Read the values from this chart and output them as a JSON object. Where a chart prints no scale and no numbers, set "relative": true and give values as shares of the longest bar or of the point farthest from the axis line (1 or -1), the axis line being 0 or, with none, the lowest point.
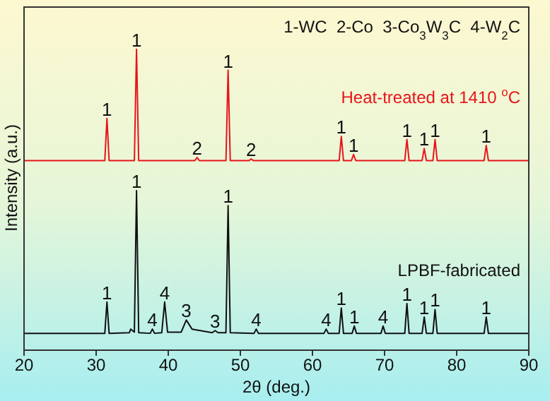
{
  "chart_data": {
    "type": "line",
    "relative": true,
    "xlabel": "2θ (deg.)",
    "ylabel": "Intensity (a.u.)",
    "xlim": [
      20,
      90
    ],
    "xticks": [
      20,
      30,
      40,
      50,
      60,
      70,
      80,
      90
    ],
    "tick_labels": "x",
    "legend": false,
    "grid": false,
    "marker": "none",
    "series": [
      {
        "name": "Heat-treated at 1410 $^{o}$C",
        "color": "#e8141c",
        "x": [
          20,
          31.2,
          31.5,
          31.8,
          35.3,
          35.6,
          35.9,
          43.7,
          44.0,
          44.3,
          48.0,
          48.3,
          48.6,
          51.2,
          51.5,
          51.8,
          63.7,
          64.0,
          64.3,
          65.4,
          65.7,
          66.0,
          72.8,
          73.1,
          73.4,
          75.2,
          75.5,
          75.8,
          76.7,
          77.0,
          77.3,
          83.8,
          84.1,
          84.4,
          90
        ],
        "values": [
          0.63,
          0.63,
          0.77,
          0.63,
          0.63,
          1.0,
          0.63,
          0.63,
          0.64,
          0.63,
          0.63,
          0.93,
          0.63,
          0.63,
          0.635,
          0.63,
          0.63,
          0.71,
          0.63,
          0.63,
          0.65,
          0.63,
          0.63,
          0.7,
          0.63,
          0.63,
          0.67,
          0.63,
          0.63,
          0.7,
          0.63,
          0.63,
          0.68,
          0.63,
          0.63
        ]
      },
      {
        "name": "LPBF-fabricated",
        "color": "#111111",
        "x": [
          20,
          31.2,
          31.5,
          31.8,
          34.6,
          34.8,
          35.3,
          35.6,
          35.9,
          37.5,
          37.8,
          38.1,
          39.1,
          39.5,
          39.9,
          41.8,
          42.5,
          43.3,
          46.1,
          46.5,
          46.9,
          48.0,
          48.3,
          48.6,
          51.9,
          52.2,
          52.5,
          61.6,
          61.9,
          62.2,
          63.7,
          64.0,
          64.3,
          65.5,
          65.8,
          66.1,
          69.5,
          69.8,
          70.1,
          72.8,
          73.1,
          73.4,
          75.2,
          75.5,
          75.8,
          76.7,
          77.0,
          77.3,
          83.8,
          84.1,
          84.4,
          90
        ],
        "values": [
          0.056,
          0.056,
          0.16,
          0.056,
          0.058,
          0.07,
          0.06,
          0.53,
          0.058,
          0.056,
          0.07,
          0.056,
          0.058,
          0.16,
          0.06,
          0.06,
          0.1,
          0.07,
          0.058,
          0.065,
          0.058,
          0.058,
          0.48,
          0.058,
          0.056,
          0.07,
          0.056,
          0.056,
          0.07,
          0.056,
          0.056,
          0.14,
          0.056,
          0.056,
          0.08,
          0.056,
          0.056,
          0.08,
          0.056,
          0.056,
          0.155,
          0.056,
          0.056,
          0.11,
          0.056,
          0.056,
          0.135,
          0.056,
          0.056,
          0.11,
          0.056,
          0.056
        ]
      }
    ],
    "annotations": [
      "1-WC  2-Co  3-Co$_{3}$W$_{3}$C  4-W$_{2}$C",
      {
        "text": "1",
        "x": 31.5,
        "y": 0.77
      },
      {
        "text": "1",
        "x": 35.6,
        "y": 1.0
      },
      {
        "text": "2",
        "x": 44.0,
        "y": 0.64
      },
      {
        "text": "1",
        "x": 48.3,
        "y": 0.93
      },
      {
        "text": "2",
        "x": 51.5,
        "y": 0.635
      },
      {
        "text": "1",
        "x": 64.0,
        "y": 0.71
      },
      {
        "text": "1",
        "x": 65.7,
        "y": 0.65
      },
      {
        "text": "1",
        "x": 73.1,
        "y": 0.7
      },
      {
        "text": "1",
        "x": 75.5,
        "y": 0.67
      },
      {
        "text": "1",
        "x": 77.0,
        "y": 0.7
      },
      {
        "text": "1",
        "x": 84.1,
        "y": 0.68
      },
      {
        "text": "1",
        "x": 31.5,
        "y": 0.16
      },
      {
        "text": "1",
        "x": 35.6,
        "y": 0.53
      },
      {
        "text": "4",
        "x": 37.8,
        "y": 0.07
      },
      {
        "text": "4",
        "x": 39.5,
        "y": 0.16
      },
      {
        "text": "3",
        "x": 42.5,
        "y": 0.1
      },
      {
        "text": "3",
        "x": 46.5,
        "y": 0.065
      },
      {
        "text": "1",
        "x": 48.3,
        "y": 0.48
      },
      {
        "text": "4",
        "x": 52.2,
        "y": 0.07
      },
      {
        "text": "4",
        "x": 61.9,
        "y": 0.07
      },
      {
        "text": "1",
        "x": 64.0,
        "y": 0.14
      },
      {
        "text": "1",
        "x": 65.8,
        "y": 0.08
      },
      {
        "text": "4",
        "x": 69.8,
        "y": 0.08
      },
      {
        "text": "1",
        "x": 73.1,
        "y": 0.155
      },
      {
        "text": "1",
        "x": 75.5,
        "y": 0.11
      },
      {
        "text": "1",
        "x": 77.0,
        "y": 0.135
      },
      {
        "text": "1",
        "x": 84.1,
        "y": 0.11
      }
    ]
  }
}
